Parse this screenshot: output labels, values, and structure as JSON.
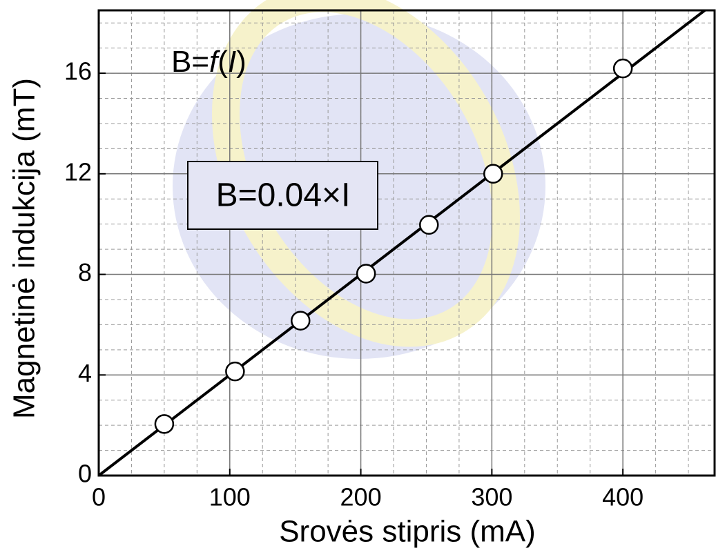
{
  "chart_data": {
    "type": "scatter",
    "xlabel": "Srovės stipris (mA)",
    "ylabel": "Magnetinė indukcija (mT)",
    "annotation_parts": [
      "B=",
      "f",
      "(",
      "I",
      ")"
    ],
    "equation": "B=0.04×I",
    "xlim": [
      0,
      470
    ],
    "ylim": [
      0,
      18.5
    ],
    "xticks": [
      0,
      100,
      200,
      300,
      400
    ],
    "yticks": [
      0,
      4,
      8,
      12,
      16
    ],
    "grid": true,
    "minor_step": {
      "x": 25,
      "y": 1
    },
    "series": [
      {
        "type": "line",
        "color": "#000000",
        "x": [
          0,
          462.5
        ],
        "values": [
          0,
          18.5
        ]
      },
      {
        "type": "scatter",
        "color": "#ffffff",
        "x": [
          50,
          104,
          154,
          204,
          252,
          301,
          400
        ],
        "values": [
          2.05,
          4.14,
          6.16,
          8.03,
          9.97,
          12,
          16.19
        ]
      }
    ]
  }
}
